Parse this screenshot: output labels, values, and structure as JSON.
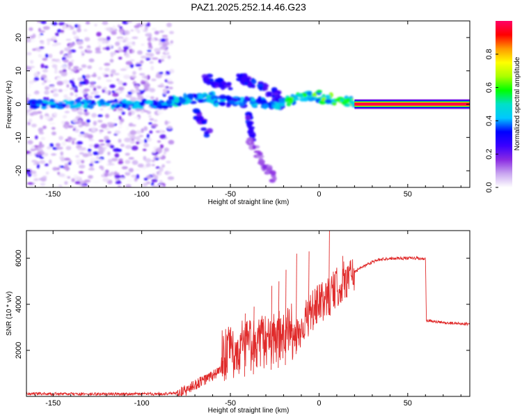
{
  "title": "PAZ1.2025.252.14.46.G23",
  "colors": {
    "snr_line": "#e02a2a",
    "carrier": "#d81b3c",
    "axis": "#000000"
  },
  "chart_data": [
    {
      "type": "heatmap",
      "name": "spectrogram",
      "xlabel": "Height of straight line (km)",
      "ylabel": "Frequency (Hz)",
      "xlim": [
        -165,
        85
      ],
      "ylim": [
        -25,
        25
      ],
      "xticks": [
        -150,
        -100,
        -50,
        0,
        50
      ],
      "xtick_labels": [
        "-150",
        "-100",
        "-50",
        "0",
        "50"
      ],
      "yticks": [
        -20,
        -10,
        0,
        10,
        20
      ],
      "ytick_labels": [
        "-20",
        "-10",
        "0",
        "10",
        "20"
      ],
      "colorbar": {
        "label": "Normalized spectral amplitude",
        "range": [
          0,
          1
        ],
        "ticks": [
          0,
          0.2,
          0.4,
          0.6,
          0.8
        ],
        "tick_labels": [
          "0.0",
          "0.2",
          "0.4",
          "0.6",
          "0.8"
        ],
        "colormap": [
          "#ffffff",
          "#c9a6f0",
          "#8a2be2",
          "#3a00ff",
          "#0000ff",
          "#00c8ff",
          "#00e0c8",
          "#00ff00",
          "#aaff00",
          "#ffff00",
          "#ff9900",
          "#ff0000",
          "#ff0066"
        ]
      },
      "carrier": {
        "x_start": 20,
        "x_end": 85,
        "frequency": 0,
        "amplitude": 0.98
      },
      "features": [
        {
          "kind": "noise",
          "x_range": [
            -165,
            -83
          ],
          "y_range": [
            -25,
            25
          ],
          "amplitude": 0.2
        },
        {
          "kind": "line",
          "x_range": [
            -163,
            -83
          ],
          "y_range": [
            -1,
            1
          ],
          "amplitude": 0.3
        },
        {
          "kind": "track",
          "from": [
            -85,
            1
          ],
          "to": [
            -60,
            2
          ],
          "amplitude": 0.45
        },
        {
          "kind": "track",
          "from": [
            -70,
            -2
          ],
          "to": [
            -62,
            -9
          ],
          "amplitude": 0.3
        },
        {
          "kind": "track",
          "from": [
            -65,
            8
          ],
          "to": [
            -50,
            5
          ],
          "amplitude": 0.3
        },
        {
          "kind": "track",
          "from": [
            -45,
            8
          ],
          "to": [
            -20,
            2
          ],
          "amplitude": 0.3
        },
        {
          "kind": "track",
          "from": [
            -40,
            -3
          ],
          "to": [
            -38,
            -10
          ],
          "amplitude": 0.3
        },
        {
          "kind": "track",
          "from": [
            -40,
            -10
          ],
          "to": [
            -25,
            -23
          ],
          "amplitude": 0.15
        },
        {
          "kind": "track",
          "from": [
            -60,
            1
          ],
          "to": [
            -20,
            0
          ],
          "amplitude": 0.4
        },
        {
          "kind": "track",
          "from": [
            -18,
            1
          ],
          "to": [
            0,
            3
          ],
          "amplitude": 0.55
        },
        {
          "kind": "track",
          "from": [
            0,
            2
          ],
          "to": [
            20,
            0.5
          ],
          "amplitude": 0.55
        }
      ]
    },
    {
      "type": "line",
      "name": "snr",
      "xlabel": "Height of straight line (km)",
      "ylabel": "SNR (10 * v/v)",
      "xlim": [
        -165,
        85
      ],
      "ylim": [
        0,
        7200
      ],
      "xticks": [
        -150,
        -100,
        -50,
        0,
        50
      ],
      "xtick_labels": [
        "-150",
        "-100",
        "-50",
        "0",
        "50"
      ],
      "yticks": [
        2000,
        4000,
        6000
      ],
      "ytick_labels": [
        "2000",
        "4000",
        "6000"
      ],
      "series": [
        {
          "name": "SNR",
          "x": [
            -165,
            -150,
            -130,
            -110,
            -90,
            -80,
            -75,
            -70,
            -65,
            -60,
            -55,
            -50,
            -45,
            -40,
            -35,
            -30,
            -25,
            -20,
            -15,
            -10,
            -5,
            0,
            5,
            10,
            15,
            20,
            25,
            30,
            35,
            40,
            45,
            50,
            55,
            60,
            60.5,
            65,
            70,
            75,
            80,
            85
          ],
          "y": [
            120,
            110,
            100,
            105,
            110,
            140,
            250,
            500,
            700,
            900,
            1200,
            1400,
            1600,
            1700,
            1800,
            1900,
            2000,
            2100,
            2400,
            3000,
            3600,
            4000,
            4300,
            4700,
            5100,
            5400,
            5650,
            5850,
            5950,
            6000,
            6000,
            6000,
            6000,
            5950,
            3300,
            3250,
            3200,
            3180,
            3160,
            3150
          ],
          "spikes": [
            {
              "x": -42,
              "y": 3600
            },
            {
              "x": -37,
              "y": 3900
            },
            {
              "x": -27,
              "y": 4800
            },
            {
              "x": -23,
              "y": 5000
            },
            {
              "x": -19,
              "y": 5500
            },
            {
              "x": -13,
              "y": 6200
            },
            {
              "x": -6,
              "y": 6300
            },
            {
              "x": 5.5,
              "y": 7200
            },
            {
              "x": 13,
              "y": 6100
            }
          ]
        }
      ]
    }
  ]
}
